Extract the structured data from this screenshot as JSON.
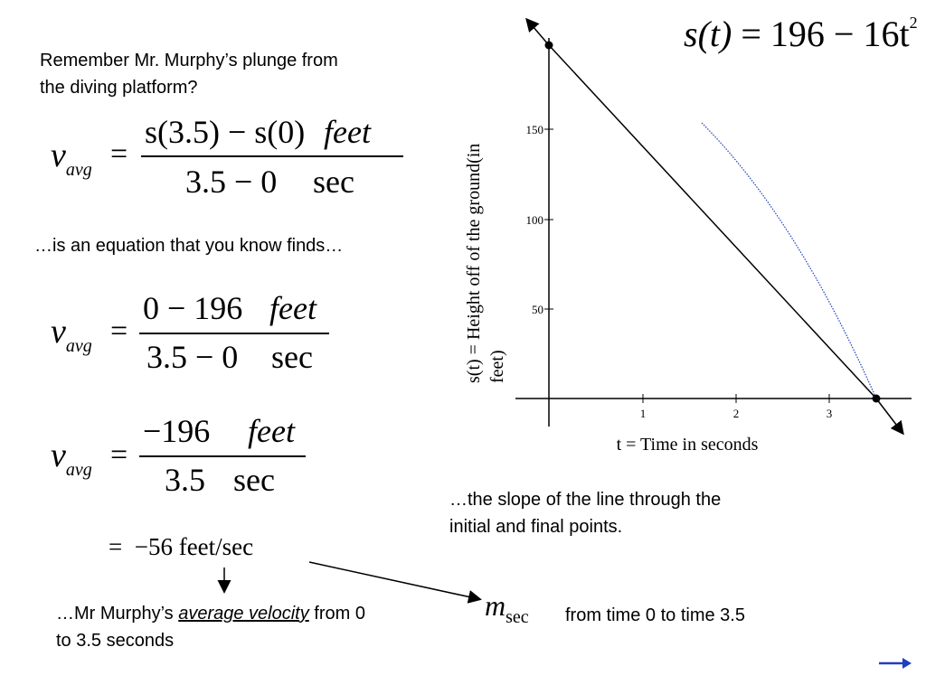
{
  "intro": {
    "line1": "Remember Mr. Murphy’s plunge from",
    "line2": "the diving platform?"
  },
  "eq1": {
    "v": "v",
    "sub": "avg",
    "eq": "=",
    "num": "s(3.5) − s(0)",
    "num_unit": "feet",
    "den": "3.5 − 0",
    "den_unit": "sec"
  },
  "mid_text": "…is an equation that you know finds…",
  "eq2": {
    "v": "v",
    "sub": "avg",
    "eq": "=",
    "num": "0 − 196",
    "num_unit": "feet",
    "den": "3.5 − 0",
    "den_unit": "sec"
  },
  "eq3": {
    "v": "v",
    "sub": "avg",
    "eq": "=",
    "num": "−196",
    "num_unit": "feet",
    "den": "3.5",
    "den_unit": "sec"
  },
  "result": "=  −56 feet/sec",
  "bottom_left": {
    "prefix": "…Mr Murphy’s ",
    "emph": "average velocity",
    "suffix": " from 0",
    "line2": "to 3.5 seconds"
  },
  "formula": {
    "lhs": "s(t)",
    "eq": "=",
    "rhs": "196 − 16t",
    "exp": "2"
  },
  "graph": {
    "ylabel_1": "s(t) = Height off of the ground(in",
    "ylabel_2": "feet)",
    "xlabel": "t = Time in seconds",
    "y_ticks": [
      "50",
      "100",
      "150"
    ],
    "x_ticks": [
      "1",
      "2",
      "3"
    ],
    "curve_color": "#1f3fbf"
  },
  "slope_text": {
    "line1": "…the slope of the line through the",
    "line2": "initial and final points."
  },
  "msec": {
    "m": "m",
    "sub": "sec",
    "text": "from time 0 to time 3.5"
  },
  "nav": {
    "arrow_color": "#1f3fbf"
  }
}
